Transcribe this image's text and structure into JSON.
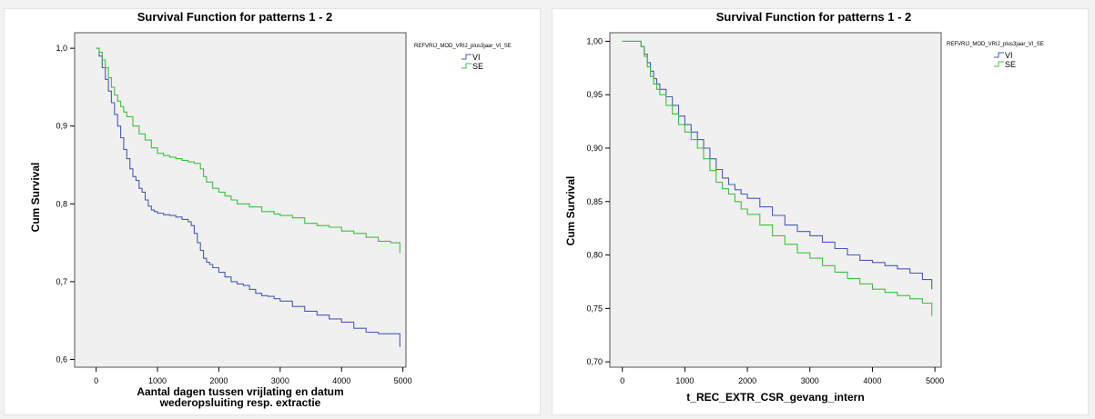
{
  "chart_data": [
    {
      "type": "line",
      "title": "Survival Function for patterns 1 - 2",
      "xlabel": "Aantal dagen tussen vrijlating en datum wederopsluiting resp. extractie",
      "xlabel_lines": [
        "Aantal dagen tussen vrijlating en datum",
        "wederopsluiting resp. extractie"
      ],
      "ylabel": "Cum Survival",
      "xlim": [
        -350,
        5050
      ],
      "ylim": [
        0.59,
        1.02
      ],
      "xticks": [
        0,
        1000,
        2000,
        3000,
        4000,
        5000
      ],
      "xtick_labels": [
        "0",
        "1000",
        "2000",
        "3000",
        "4000",
        "5000"
      ],
      "yticks": [
        0.6,
        0.7,
        0.8,
        0.9,
        1.0
      ],
      "ytick_labels": [
        "0,6",
        "0,7",
        "0,8",
        "0,9",
        "1,0"
      ],
      "legend_title": "REFVRIJ_MOD_VRIJ_plus3jaar_VI_SE",
      "legend_position": "outside-right",
      "grid": false,
      "plot_background": "#f0f0f0",
      "series": [
        {
          "name": "VI",
          "color": "#4a5bb5",
          "x": [
            0,
            50,
            100,
            150,
            200,
            250,
            300,
            350,
            400,
            450,
            500,
            550,
            600,
            650,
            700,
            750,
            800,
            850,
            900,
            950,
            1000,
            1100,
            1200,
            1300,
            1400,
            1500,
            1550,
            1600,
            1650,
            1700,
            1750,
            1800,
            1850,
            1900,
            2000,
            2100,
            2200,
            2300,
            2400,
            2500,
            2600,
            2700,
            2800,
            2900,
            3000,
            3200,
            3400,
            3600,
            3800,
            4000,
            4200,
            4400,
            4600,
            4800,
            4950,
            4950
          ],
          "y": [
            1.0,
            0.99,
            0.975,
            0.96,
            0.945,
            0.93,
            0.915,
            0.9,
            0.885,
            0.87,
            0.858,
            0.845,
            0.835,
            0.83,
            0.82,
            0.815,
            0.805,
            0.797,
            0.792,
            0.79,
            0.788,
            0.786,
            0.785,
            0.783,
            0.78,
            0.777,
            0.772,
            0.762,
            0.75,
            0.74,
            0.73,
            0.725,
            0.722,
            0.718,
            0.712,
            0.706,
            0.7,
            0.697,
            0.695,
            0.69,
            0.685,
            0.682,
            0.681,
            0.678,
            0.675,
            0.668,
            0.662,
            0.657,
            0.652,
            0.648,
            0.64,
            0.635,
            0.633,
            0.633,
            0.633,
            0.616
          ]
        },
        {
          "name": "SE",
          "color": "#3fbf3f",
          "x": [
            0,
            50,
            100,
            150,
            200,
            250,
            300,
            350,
            400,
            450,
            500,
            600,
            700,
            800,
            900,
            1000,
            1100,
            1200,
            1300,
            1400,
            1500,
            1600,
            1700,
            1750,
            1800,
            1900,
            2000,
            2100,
            2200,
            2300,
            2500,
            2700,
            2900,
            3000,
            3200,
            3400,
            3600,
            3800,
            4000,
            4200,
            4400,
            4600,
            4800,
            4950,
            4950
          ],
          "y": [
            1.0,
            0.995,
            0.985,
            0.975,
            0.962,
            0.95,
            0.94,
            0.932,
            0.925,
            0.918,
            0.912,
            0.9,
            0.89,
            0.882,
            0.872,
            0.865,
            0.862,
            0.86,
            0.858,
            0.856,
            0.854,
            0.852,
            0.845,
            0.835,
            0.828,
            0.82,
            0.815,
            0.81,
            0.805,
            0.8,
            0.796,
            0.79,
            0.787,
            0.785,
            0.782,
            0.775,
            0.772,
            0.77,
            0.765,
            0.762,
            0.757,
            0.752,
            0.75,
            0.75,
            0.737
          ]
        }
      ]
    },
    {
      "type": "line",
      "title": "Survival Function for patterns 1 - 2",
      "xlabel": "t_REC_EXTR_CSR_gevang_intern",
      "xlabel_lines": [
        "t_REC_EXTR_CSR_gevang_intern"
      ],
      "ylabel": "Cum Survival",
      "xlim": [
        -200,
        5100
      ],
      "ylim": [
        0.695,
        1.008
      ],
      "xticks": [
        0,
        1000,
        2000,
        3000,
        4000,
        5000
      ],
      "xtick_labels": [
        "0",
        "1000",
        "2000",
        "3000",
        "4000",
        "5000"
      ],
      "yticks": [
        0.7,
        0.75,
        0.8,
        0.85,
        0.9,
        0.95,
        1.0
      ],
      "ytick_labels": [
        "0,70",
        "0,75",
        "0,80",
        "0,85",
        "0,90",
        "0,95",
        "1,00"
      ],
      "legend_title": "REFVRIJ_MOD_VRIJ_plus3jaar_VI_SE",
      "legend_position": "outside-right",
      "grid": false,
      "plot_background": "#f0f0f0",
      "series": [
        {
          "name": "VI",
          "color": "#4a5bb5",
          "x": [
            0,
            250,
            300,
            350,
            400,
            450,
            500,
            550,
            600,
            700,
            800,
            900,
            1000,
            1100,
            1200,
            1300,
            1400,
            1500,
            1600,
            1700,
            1800,
            1900,
            2000,
            2200,
            2400,
            2600,
            2800,
            3000,
            3200,
            3400,
            3600,
            3800,
            4000,
            4200,
            4400,
            4600,
            4800,
            4950,
            4950
          ],
          "y": [
            1.0,
            1.0,
            0.995,
            0.988,
            0.98,
            0.972,
            0.965,
            0.96,
            0.955,
            0.948,
            0.94,
            0.93,
            0.922,
            0.915,
            0.908,
            0.9,
            0.89,
            0.88,
            0.872,
            0.866,
            0.861,
            0.857,
            0.853,
            0.845,
            0.837,
            0.828,
            0.822,
            0.818,
            0.812,
            0.806,
            0.8,
            0.795,
            0.793,
            0.79,
            0.787,
            0.783,
            0.777,
            0.771,
            0.768
          ]
        },
        {
          "name": "SE",
          "color": "#3fbf3f",
          "x": [
            0,
            250,
            300,
            350,
            400,
            450,
            500,
            550,
            600,
            700,
            800,
            900,
            1000,
            1100,
            1200,
            1300,
            1400,
            1500,
            1600,
            1700,
            1800,
            1900,
            2000,
            2200,
            2400,
            2600,
            2800,
            3000,
            3200,
            3400,
            3600,
            3800,
            4000,
            4200,
            4400,
            4600,
            4800,
            4950,
            4950
          ],
          "y": [
            1.0,
            1.0,
            0.995,
            0.986,
            0.976,
            0.967,
            0.96,
            0.955,
            0.95,
            0.94,
            0.932,
            0.922,
            0.915,
            0.908,
            0.9,
            0.89,
            0.879,
            0.868,
            0.862,
            0.857,
            0.85,
            0.843,
            0.838,
            0.828,
            0.818,
            0.81,
            0.802,
            0.797,
            0.79,
            0.784,
            0.778,
            0.773,
            0.768,
            0.765,
            0.762,
            0.759,
            0.755,
            0.75,
            0.743
          ]
        }
      ]
    }
  ]
}
